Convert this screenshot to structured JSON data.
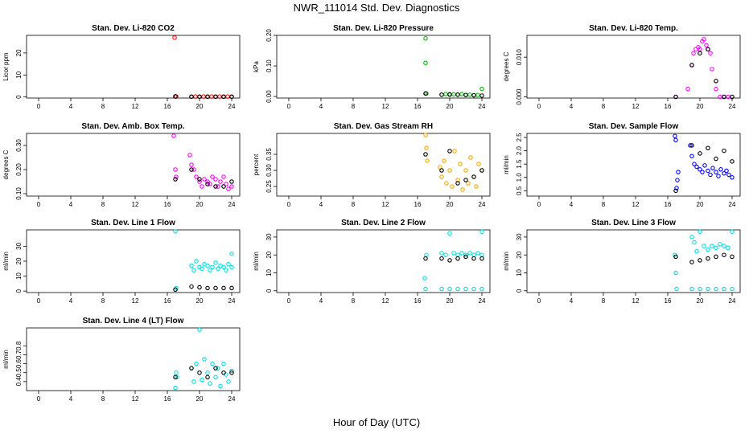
{
  "figure": {
    "title": "NWR_111014  Std. Dev. Diagnostics",
    "xlabel": "Hour of Day (UTC)",
    "colors": {
      "axis": "#000000",
      "black_series": "#000000"
    }
  },
  "chart_data": [
    {
      "type": "scatter",
      "title": "Stan. Dev. Li-820 CO2",
      "xlabel": "",
      "ylabel": "Licor ppm",
      "xlim": [
        -1.5,
        25
      ],
      "ylim": [
        -0.5,
        28
      ],
      "xticks": [
        "0",
        "4",
        "8",
        "12",
        "16",
        "20",
        "24"
      ],
      "yticks": [
        "0",
        "10",
        "20"
      ],
      "series": [
        {
          "name": "colored",
          "color": "#ff0000",
          "x": [
            16.9,
            17.0,
            17.1,
            19.0,
            19.5,
            20.0,
            20.5,
            21.0,
            21.5,
            22.0,
            22.5,
            23.0,
            23.5,
            24.0
          ],
          "y": [
            27,
            0.3,
            0.2,
            0.2,
            0.2,
            0.2,
            0.2,
            0.2,
            0.2,
            0.2,
            0.2,
            0.2,
            0.2,
            0.2
          ]
        },
        {
          "name": "black",
          "color": "#000000",
          "x": [
            17.0,
            19.0,
            20.0,
            21.0,
            22.0,
            23.0,
            24.0
          ],
          "y": [
            0.2,
            0.1,
            0.1,
            0.1,
            0.1,
            0.1,
            0.1
          ]
        }
      ]
    },
    {
      "type": "scatter",
      "title": "Stan. Dev. Li-820 Pressure",
      "xlabel": "",
      "ylabel": "kPa",
      "xlim": [
        -1.5,
        25
      ],
      "ylim": [
        -0.005,
        0.2
      ],
      "xticks": [
        "0",
        "4",
        "8",
        "12",
        "16",
        "20",
        "24"
      ],
      "yticks": [
        "0.00",
        "0.10",
        "0.20"
      ],
      "series": [
        {
          "name": "colored",
          "color": "#00c000",
          "x": [
            17.0,
            17.0,
            17.1,
            19.0,
            19.5,
            20.0,
            20.5,
            21.0,
            21.5,
            22.0,
            22.5,
            23.0,
            23.5,
            24.0
          ],
          "y": [
            0.19,
            0.11,
            0.01,
            0.006,
            0.008,
            0.006,
            0.007,
            0.006,
            0.008,
            0.005,
            0.006,
            0.004,
            0.005,
            0.025
          ]
        },
        {
          "name": "black",
          "color": "#000000",
          "x": [
            17.0,
            19.0,
            20.0,
            21.0,
            22.0,
            23.0,
            24.0
          ],
          "y": [
            0.01,
            0.006,
            0.007,
            0.006,
            0.005,
            0.004,
            0.003
          ]
        }
      ]
    },
    {
      "type": "scatter",
      "title": "Stan. Dev. Li-820 Temp.",
      "xlabel": "",
      "ylabel": "degrees C",
      "xlim": [
        -1.5,
        25
      ],
      "ylim": [
        -0.0003,
        0.0155
      ],
      "xticks": [
        "0",
        "4",
        "8",
        "12",
        "16",
        "20",
        "24"
      ],
      "yticks": [
        "0.000",
        "0.010"
      ],
      "series": [
        {
          "name": "colored",
          "color": "#ff00ff",
          "x": [
            17.0,
            18.5,
            19.0,
            19.2,
            19.5,
            19.8,
            20.0,
            20.3,
            20.5,
            20.8,
            21.0,
            21.3,
            21.5,
            22.0,
            22.5,
            23.0,
            23.5,
            24.0
          ],
          "y": [
            0.0,
            0.002,
            0.008,
            0.011,
            0.012,
            0.0125,
            0.012,
            0.014,
            0.0145,
            0.013,
            0.012,
            0.011,
            0.007,
            0.002,
            0.0,
            0.0,
            0.0,
            0.0
          ]
        },
        {
          "name": "black",
          "color": "#000000",
          "x": [
            17.0,
            19.0,
            20.0,
            21.0,
            22.0,
            23.0,
            24.0
          ],
          "y": [
            0.0,
            0.008,
            0.011,
            0.012,
            0.004,
            0.0,
            0.0
          ]
        }
      ]
    },
    {
      "type": "scatter",
      "title": "Stan. Dev. Amb. Box Temp.",
      "xlabel": "",
      "ylabel": "degrees C",
      "xlim": [
        -1.5,
        25
      ],
      "ylim": [
        0.09,
        0.35
      ],
      "xticks": [
        "0",
        "4",
        "8",
        "12",
        "16",
        "20",
        "24"
      ],
      "yticks": [
        "0.10",
        "0.20",
        "0.30"
      ],
      "series": [
        {
          "name": "colored",
          "color": "#ff00ff",
          "x": [
            16.8,
            17.0,
            17.1,
            18.8,
            19.0,
            19.3,
            19.6,
            20.0,
            20.3,
            20.6,
            21.0,
            21.3,
            21.6,
            22.0,
            22.3,
            22.6,
            23.0,
            23.3,
            23.6,
            24.0
          ],
          "y": [
            0.34,
            0.2,
            0.17,
            0.26,
            0.22,
            0.2,
            0.17,
            0.15,
            0.13,
            0.16,
            0.15,
            0.14,
            0.17,
            0.16,
            0.13,
            0.15,
            0.17,
            0.14,
            0.12,
            0.13
          ]
        },
        {
          "name": "black",
          "color": "#000000",
          "x": [
            17.0,
            19.0,
            20.0,
            21.0,
            22.0,
            23.0,
            24.0
          ],
          "y": [
            0.16,
            0.2,
            0.16,
            0.14,
            0.13,
            0.13,
            0.15
          ]
        }
      ]
    },
    {
      "type": "scatter",
      "title": "Stan. Dev. Gas Stream RH",
      "xlabel": "",
      "ylabel": "percent",
      "xlim": [
        -1.5,
        25
      ],
      "ylim": [
        0.22,
        0.415
      ],
      "xticks": [
        "0",
        "4",
        "8",
        "12",
        "16",
        "20",
        "24"
      ],
      "yticks": [
        "0.25",
        "0.30",
        "0.35"
      ],
      "series": [
        {
          "name": "colored",
          "color": "#ffa500",
          "x": [
            17.0,
            17.1,
            17.2,
            18.8,
            19.0,
            19.3,
            19.6,
            20.0,
            20.3,
            20.6,
            21.0,
            21.3,
            21.6,
            22.0,
            22.3,
            22.6,
            23.0,
            23.3,
            23.6,
            24.0
          ],
          "y": [
            0.41,
            0.37,
            0.33,
            0.31,
            0.28,
            0.33,
            0.26,
            0.3,
            0.25,
            0.36,
            0.27,
            0.32,
            0.24,
            0.3,
            0.26,
            0.34,
            0.28,
            0.25,
            0.32,
            0.3
          ]
        },
        {
          "name": "black",
          "color": "#000000",
          "x": [
            17.0,
            19.0,
            20.0,
            21.0,
            22.0,
            23.0,
            24.0
          ],
          "y": [
            0.35,
            0.3,
            0.36,
            0.26,
            0.27,
            0.28,
            0.3
          ]
        }
      ]
    },
    {
      "type": "scatter",
      "title": "Stan. Dev. Sample Flow",
      "xlabel": "",
      "ylabel": "ml/min",
      "xlim": [
        -1.5,
        25
      ],
      "ylim": [
        0.3,
        2.65
      ],
      "xticks": [
        "0",
        "4",
        "8",
        "12",
        "16",
        "20",
        "24"
      ],
      "yticks": [
        "0.5",
        "1.0",
        "1.5",
        "2.0",
        "2.5"
      ],
      "series": [
        {
          "name": "colored",
          "color": "#0000ff",
          "x": [
            16.9,
            17.0,
            17.1,
            17.2,
            17.3,
            18.8,
            19.0,
            19.3,
            19.6,
            20.0,
            20.3,
            20.6,
            21.0,
            21.3,
            21.6,
            22.0,
            22.3,
            22.6,
            23.0,
            23.3,
            23.6,
            24.0
          ],
          "y": [
            2.55,
            2.4,
            0.6,
            0.9,
            1.2,
            2.2,
            1.8,
            1.5,
            1.4,
            1.3,
            1.2,
            1.45,
            1.25,
            1.1,
            1.35,
            1.2,
            1.05,
            1.3,
            1.15,
            1.25,
            1.1,
            1.0
          ]
        },
        {
          "name": "black",
          "color": "#000000",
          "x": [
            17.0,
            19.0,
            20.0,
            21.0,
            22.0,
            23.0,
            24.0
          ],
          "y": [
            0.5,
            2.2,
            1.9,
            2.1,
            1.7,
            2.0,
            1.6
          ]
        }
      ]
    },
    {
      "type": "scatter",
      "title": "Stan. Dev. Line 1 Flow",
      "xlabel": "",
      "ylabel": "ml/min",
      "xlim": [
        -1.5,
        25
      ],
      "ylim": [
        -1,
        41
      ],
      "xticks": [
        "0",
        "4",
        "8",
        "12",
        "16",
        "20",
        "24"
      ],
      "yticks": [
        "0",
        "10",
        "20",
        "30"
      ],
      "series": [
        {
          "name": "colored",
          "color": "#00e0e0",
          "x": [
            17.0,
            17.1,
            19.0,
            19.3,
            19.6,
            20.0,
            20.3,
            20.6,
            21.0,
            21.3,
            21.6,
            22.0,
            22.3,
            22.6,
            23.0,
            23.3,
            23.6,
            24.0,
            24.0
          ],
          "y": [
            40,
            2,
            17,
            14,
            20,
            16,
            15,
            18,
            17,
            14,
            16,
            19,
            15,
            17,
            16,
            14,
            18,
            16,
            25
          ]
        },
        {
          "name": "black",
          "color": "#000000",
          "x": [
            17.0,
            19.0,
            20.0,
            21.0,
            22.0,
            23.0,
            24.0
          ],
          "y": [
            1,
            3,
            2.5,
            2,
            2,
            2,
            2
          ]
        }
      ]
    },
    {
      "type": "scatter",
      "title": "Stan. Dev. Line 2 Flow",
      "xlabel": "",
      "ylabel": "ml/min",
      "xlim": [
        -1.5,
        25
      ],
      "ylim": [
        -1,
        34
      ],
      "xticks": [
        "0",
        "4",
        "8",
        "12",
        "16",
        "20",
        "24"
      ],
      "yticks": [
        "0",
        "10",
        "20",
        "30"
      ],
      "series": [
        {
          "name": "colored",
          "color": "#00e0e0",
          "x": [
            16.9,
            17.0,
            17.1,
            19.0,
            19.5,
            20.0,
            20.5,
            21.0,
            21.5,
            22.0,
            22.5,
            23.0,
            23.5,
            24.0,
            19.0,
            20.0,
            21.0,
            22.0,
            23.0,
            24.0,
            24.0
          ],
          "y": [
            7,
            1,
            20,
            21,
            20,
            32,
            21,
            20,
            21,
            20,
            21,
            20,
            21,
            33,
            1,
            1,
            1,
            1,
            1,
            1,
            20
          ]
        },
        {
          "name": "black",
          "color": "#000000",
          "x": [
            17.0,
            19.0,
            20.0,
            21.0,
            22.0,
            23.0,
            24.0
          ],
          "y": [
            18,
            18,
            17,
            18,
            19,
            18,
            18
          ]
        }
      ]
    },
    {
      "type": "scatter",
      "title": "Stan. Dev. Line 3 Flow",
      "xlabel": "",
      "ylabel": "ml/min",
      "xlim": [
        -1.5,
        25
      ],
      "ylim": [
        -1,
        34
      ],
      "xticks": [
        "0",
        "4",
        "8",
        "12",
        "16",
        "20",
        "24"
      ],
      "yticks": [
        "0",
        "10",
        "20",
        "30"
      ],
      "series": [
        {
          "name": "colored",
          "color": "#00e0e0",
          "x": [
            16.9,
            17.0,
            17.1,
            19.0,
            19.3,
            19.6,
            20.0,
            20.5,
            21.0,
            21.5,
            22.0,
            22.5,
            23.0,
            23.5,
            24.0,
            19.0,
            20.0,
            21.0,
            22.0,
            23.0,
            24.0
          ],
          "y": [
            20,
            10,
            1,
            30,
            27,
            22,
            33,
            25,
            23,
            25,
            24,
            26,
            25,
            24,
            33,
            1,
            1,
            1,
            1,
            1,
            1
          ]
        },
        {
          "name": "black",
          "color": "#000000",
          "x": [
            17.0,
            19.0,
            20.0,
            21.0,
            22.0,
            23.0,
            24.0
          ],
          "y": [
            19,
            16,
            17,
            18,
            19,
            20,
            19
          ]
        }
      ]
    },
    {
      "type": "scatter",
      "title": "Stan. Dev. Line 4 (LT) Flow",
      "xlabel": "",
      "ylabel": "ml/min",
      "xlim": [
        -1.5,
        25
      ],
      "ylim": [
        0.3,
        1.0
      ],
      "xticks": [
        "0",
        "4",
        "8",
        "12",
        "16",
        "20",
        "24"
      ],
      "yticks": [
        "0.4",
        "0.5",
        "0.6",
        "0.7",
        "0.8"
      ],
      "series": [
        {
          "name": "colored",
          "color": "#00e0e0",
          "x": [
            17.0,
            17.1,
            17.2,
            19.0,
            19.3,
            19.6,
            20.0,
            20.3,
            20.6,
            21.0,
            21.3,
            21.6,
            22.0,
            22.3,
            22.6,
            23.0,
            23.3,
            23.6,
            24.0
          ],
          "y": [
            0.33,
            0.5,
            0.45,
            0.55,
            0.4,
            0.6,
            0.98,
            0.42,
            0.65,
            0.5,
            0.38,
            0.6,
            0.45,
            0.55,
            0.35,
            0.6,
            0.48,
            0.4,
            0.52
          ]
        },
        {
          "name": "black",
          "color": "#000000",
          "x": [
            17.0,
            19.0,
            20.0,
            21.0,
            22.0,
            23.0,
            24.0
          ],
          "y": [
            0.45,
            0.55,
            0.5,
            0.45,
            0.55,
            0.5,
            0.5
          ]
        }
      ]
    }
  ]
}
